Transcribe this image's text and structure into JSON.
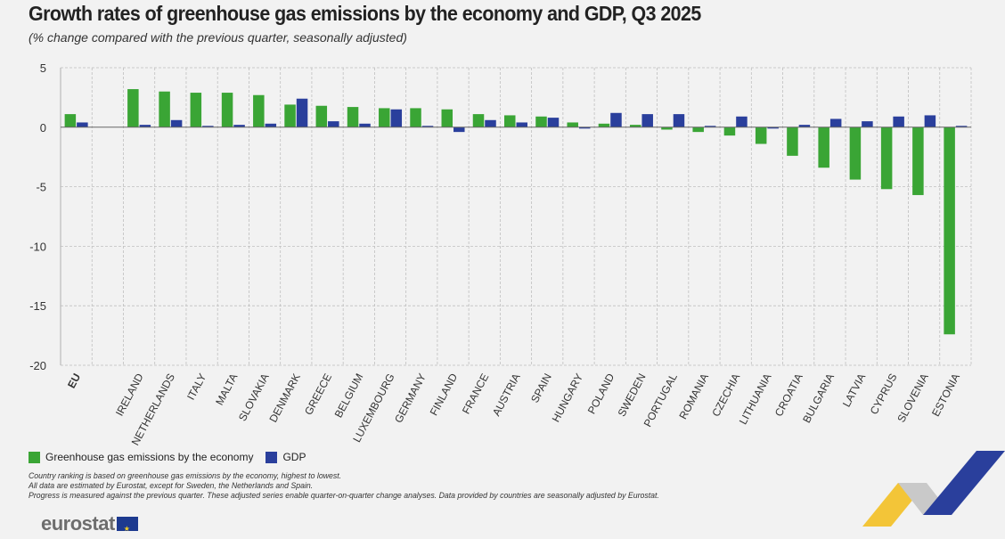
{
  "title": "Growth rates of greenhouse gas emissions by the economy and GDP, Q3 2025",
  "subtitle": "(% change compared with the previous quarter, seasonally adjusted)",
  "colors": {
    "ghg": "#3aa535",
    "gdp": "#2a3f9c",
    "grid": "#bfbfbf",
    "axis": "#999999"
  },
  "legend": {
    "ghg_label": "Greenhouse gas emissions by the economy",
    "gdp_label": "GDP"
  },
  "notes": [
    "Country ranking is based on greenhouse gas emissions by the economy, highest to lowest.",
    "All data are estimated by Eurostat, except for Sweden, the Netherlands and Spain.",
    "Progress is measured against the previous quarter. These adjusted series enable quarter-on-quarter change analyses. Data provided by countries are seasonally adjusted by Eurostat."
  ],
  "logo": {
    "text": "eurostat",
    "icon": "eu-flag-icon"
  },
  "chart_data": {
    "type": "bar",
    "title": "Growth rates of greenhouse gas emissions by the economy and GDP, Q3 2025",
    "xlabel": "",
    "ylabel": "",
    "ylim": [
      -20,
      5
    ],
    "yticks": [
      5,
      0,
      -5,
      -10,
      -15,
      -20
    ],
    "grid": true,
    "legend_position": "bottom-left",
    "categories": [
      "EU",
      "",
      "IRELAND",
      "NETHERLANDS",
      "ITALY",
      "MALTA",
      "SLOVAKIA",
      "DENMARK",
      "GREECE",
      "BELGIUM",
      "LUXEMBOURG",
      "GERMANY",
      "FINLAND",
      "FRANCE",
      "AUSTRIA",
      "SPAIN",
      "HUNGARY",
      "POLAND",
      "SWEDEN",
      "PORTUGAL",
      "ROMANIA",
      "CZECHIA",
      "LITHUANIA",
      "CROATIA",
      "BULGARIA",
      "LATVIA",
      "CYPRUS",
      "SLOVENIA",
      "ESTONIA"
    ],
    "series": [
      {
        "name": "Greenhouse gas emissions by the economy",
        "values": [
          1.1,
          null,
          3.2,
          3.0,
          2.9,
          2.9,
          2.7,
          1.9,
          1.8,
          1.7,
          1.6,
          1.6,
          1.5,
          1.1,
          1.0,
          0.9,
          0.4,
          0.3,
          0.2,
          -0.2,
          -0.4,
          -0.7,
          -1.4,
          -2.4,
          -3.4,
          -4.4,
          -5.2,
          -5.7,
          -17.4
        ]
      },
      {
        "name": "GDP",
        "values": [
          0.4,
          null,
          0.2,
          0.6,
          0.1,
          0.2,
          0.3,
          2.4,
          0.5,
          0.3,
          1.5,
          0.1,
          -0.4,
          0.6,
          0.4,
          0.8,
          -0.1,
          1.2,
          1.1,
          1.1,
          0.0,
          0.9,
          -0.1,
          0.2,
          0.7,
          0.5,
          0.9,
          1.0,
          0.1
        ]
      }
    ]
  }
}
